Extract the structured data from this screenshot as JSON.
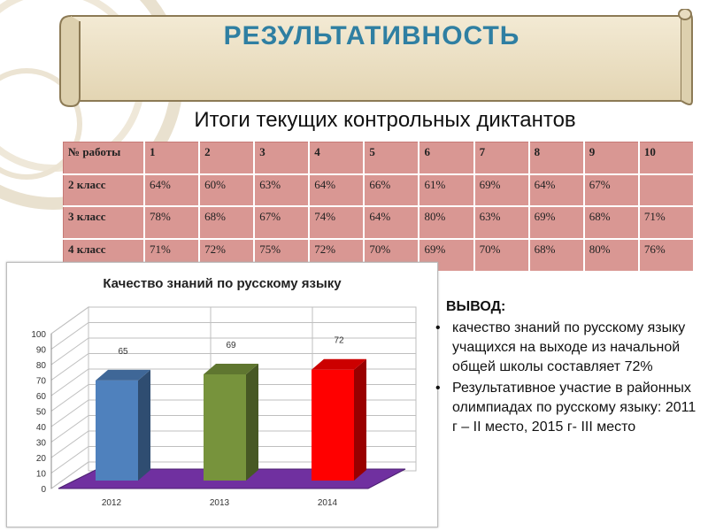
{
  "banner": {
    "title": "РЕЗУЛЬТАТИВНОСТЬ"
  },
  "subtitle": "Итоги текущих контрольных диктантов",
  "table": {
    "header": [
      "№ работы",
      "1",
      "2",
      "3",
      "4",
      "5",
      "6",
      "7",
      "8",
      "9",
      "10"
    ],
    "rows": [
      {
        "label": "2 класс",
        "cells": [
          "64%",
          "60%",
          "63%",
          "64%",
          "66%",
          "61%",
          "69%",
          "64%",
          "67%",
          ""
        ]
      },
      {
        "label": "3 класс",
        "cells": [
          "78%",
          "68%",
          "67%",
          "74%",
          "64%",
          "80%",
          "63%",
          "69%",
          "68%",
          "71%"
        ]
      },
      {
        "label": "4 класс",
        "cells": [
          "71%",
          "72%",
          "75%",
          "72%",
          "70%",
          "69%",
          "70%",
          "68%",
          "80%",
          "76%"
        ]
      }
    ]
  },
  "chart_data": {
    "type": "bar",
    "title": "Качество знаний по русскому языку",
    "categories": [
      "2012",
      "2013",
      "2014"
    ],
    "values": [
      65,
      69,
      72
    ],
    "data_labels": [
      "65",
      "69",
      "72"
    ],
    "y_ticks": [
      "0",
      "10",
      "20",
      "30",
      "40",
      "50",
      "60",
      "70",
      "80",
      "90",
      "100"
    ],
    "ylim": [
      0,
      100
    ],
    "grid": true,
    "colors": [
      "#4f81bd",
      "#77933c",
      "#ff0000"
    ],
    "floor_color": "#7030a0"
  },
  "conclusion": {
    "heading": "ВЫВОД:",
    "bullet": "•",
    "items": [
      " качество знаний по русскому языку  учащихся на выходе из начальной общей школы составляет 72%",
      "Результативное участие в районных олимпиадах по русскому языку: 2011 г – II место, 2015 г- III место"
    ]
  }
}
